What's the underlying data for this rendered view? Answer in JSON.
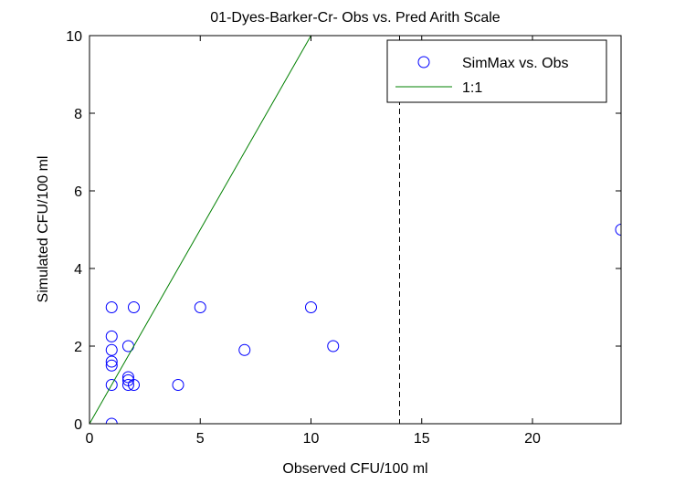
{
  "chart_data": {
    "type": "scatter",
    "title": "01-Dyes-Barker-Cr- Obs vs. Pred Arith Scale",
    "xlabel": "Observed CFU/100 ml",
    "ylabel": "Simulated CFU/100 ml",
    "xlim": [
      0,
      24
    ],
    "ylim": [
      0,
      10
    ],
    "xticks": [
      0,
      5,
      10,
      15,
      20
    ],
    "yticks": [
      0,
      2,
      4,
      6,
      8,
      10
    ],
    "grid": false,
    "legend_position": "top-right",
    "series": [
      {
        "name": "SimMax vs. Obs",
        "kind": "scatter",
        "color": "#0000ff",
        "x": [
          1,
          1,
          1,
          1,
          1,
          1,
          1,
          2,
          1.75,
          1.75,
          1.75,
          1.75,
          2,
          4,
          5,
          7,
          10,
          11,
          24
        ],
        "y": [
          0,
          1,
          1.5,
          1.6,
          1.9,
          2.25,
          3,
          3,
          2,
          1.2,
          1.12,
          1,
          1,
          1,
          3,
          1.9,
          3,
          2,
          5
        ]
      },
      {
        "name": "1:1",
        "kind": "line",
        "color": "#008000",
        "x": [
          0,
          10
        ],
        "y": [
          0,
          10
        ]
      }
    ],
    "annotations": [
      {
        "kind": "vertical-dashed-line",
        "x": 14,
        "color": "#000000"
      }
    ]
  }
}
